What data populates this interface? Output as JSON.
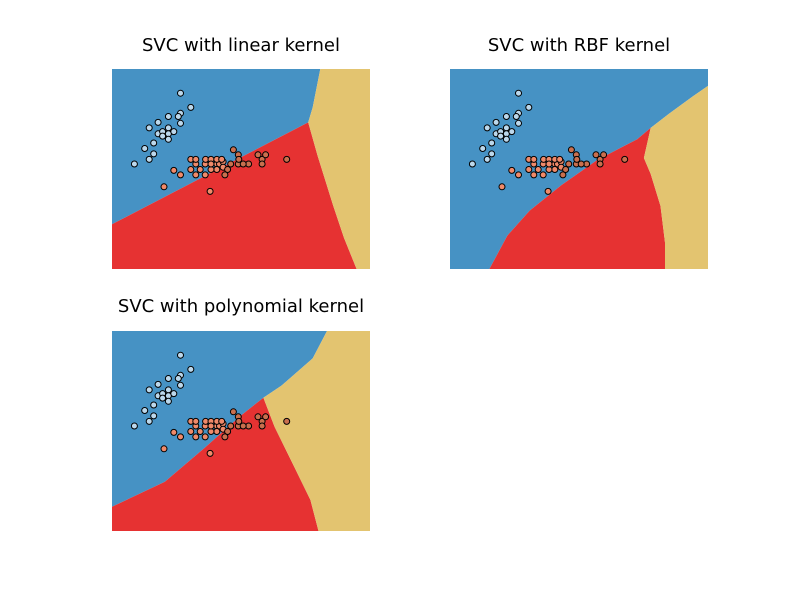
{
  "colors": {
    "class0": "#4692c4",
    "class1": "#e63232",
    "class2": "#e3c470",
    "point_edge": "#000000"
  },
  "chart_data": [
    {
      "type": "scatter",
      "title": "SVC with linear kernel",
      "xlim": [
        -1.98,
        3.78
      ],
      "ylim": [
        -2.68,
        1.7
      ],
      "grid": false,
      "regions": [
        {
          "class": 0,
          "polygon": [
            [
              -1.98,
              1.7
            ],
            [
              2.67,
              1.7
            ],
            [
              2.5,
              0.86
            ],
            [
              2.4,
              0.53
            ],
            [
              -1.98,
              -1.7
            ]
          ]
        },
        {
          "class": 1,
          "polygon": [
            [
              -1.98,
              -1.7
            ],
            [
              2.4,
              0.53
            ],
            [
              2.61,
              -0.2
            ],
            [
              2.96,
              -1.3
            ],
            [
              3.2,
              -2.0
            ],
            [
              3.48,
              -2.68
            ],
            [
              -1.98,
              -2.68
            ]
          ]
        },
        {
          "class": 2,
          "polygon": [
            [
              2.67,
              1.7
            ],
            [
              3.78,
              1.7
            ],
            [
              3.78,
              -2.68
            ],
            [
              3.48,
              -2.68
            ],
            [
              3.2,
              -2.0
            ],
            [
              2.96,
              -1.3
            ],
            [
              2.61,
              -0.2
            ],
            [
              2.4,
              0.53
            ],
            [
              2.5,
              0.86
            ]
          ]
        }
      ]
    },
    {
      "type": "scatter",
      "title": "SVC with RBF kernel",
      "xlim": [
        -1.98,
        3.78
      ],
      "ylim": [
        -2.68,
        1.7
      ],
      "grid": false,
      "regions": [
        {
          "class": 0,
          "polygon": [
            [
              -1.98,
              1.7
            ],
            [
              3.78,
              1.7
            ],
            [
              3.78,
              1.33
            ],
            [
              3.44,
              1.1
            ],
            [
              2.91,
              0.72
            ],
            [
              2.5,
              0.41
            ],
            [
              2.2,
              0.16
            ],
            [
              1.8,
              -0.04
            ],
            [
              1.3,
              -0.3
            ],
            [
              0.5,
              -0.85
            ],
            [
              -0.2,
              -1.4
            ],
            [
              -0.7,
              -1.95
            ],
            [
              -1.1,
              -2.68
            ],
            [
              -1.98,
              -2.68
            ]
          ]
        },
        {
          "class": 1,
          "polygon": [
            [
              2.2,
              0.16
            ],
            [
              1.8,
              -0.04
            ],
            [
              1.3,
              -0.3
            ],
            [
              0.5,
              -0.85
            ],
            [
              -0.2,
              -1.4
            ],
            [
              -0.7,
              -1.95
            ],
            [
              -1.1,
              -2.68
            ],
            [
              2.82,
              -2.68
            ],
            [
              2.82,
              -2.1
            ],
            [
              2.72,
              -1.3
            ],
            [
              2.5,
              -0.6
            ],
            [
              2.35,
              -0.25
            ],
            [
              2.5,
              0.41
            ]
          ]
        },
        {
          "class": 2,
          "polygon": [
            [
              2.5,
              0.41
            ],
            [
              2.91,
              0.72
            ],
            [
              3.44,
              1.1
            ],
            [
              3.78,
              1.33
            ],
            [
              3.78,
              -2.68
            ],
            [
              2.82,
              -2.68
            ],
            [
              2.82,
              -2.1
            ],
            [
              2.72,
              -1.3
            ],
            [
              2.5,
              -0.6
            ],
            [
              2.35,
              -0.25
            ]
          ]
        }
      ]
    },
    {
      "type": "scatter",
      "title": "SVC with polynomial kernel",
      "xlim": [
        -1.98,
        3.78
      ],
      "ylim": [
        -2.68,
        1.7
      ],
      "grid": false,
      "regions": [
        {
          "class": 0,
          "polygon": [
            [
              -1.98,
              1.7
            ],
            [
              2.82,
              1.7
            ],
            [
              2.5,
              1.1
            ],
            [
              1.8,
              0.5
            ],
            [
              1.4,
              0.24
            ],
            [
              0.9,
              -0.15
            ],
            [
              0.1,
              -0.85
            ],
            [
              -0.8,
              -1.6
            ],
            [
              -1.98,
              -2.15
            ],
            [
              -1.98,
              1.7
            ]
          ]
        },
        {
          "class": 1,
          "polygon": [
            [
              -1.98,
              -2.15
            ],
            [
              -0.8,
              -1.6
            ],
            [
              0.1,
              -0.85
            ],
            [
              0.9,
              -0.15
            ],
            [
              1.4,
              0.24
            ],
            [
              1.65,
              -0.4
            ],
            [
              2.1,
              -1.3
            ],
            [
              2.45,
              -2.0
            ],
            [
              2.63,
              -2.68
            ],
            [
              -1.98,
              -2.68
            ]
          ]
        },
        {
          "class": 2,
          "polygon": [
            [
              1.4,
              0.24
            ],
            [
              1.8,
              0.5
            ],
            [
              2.5,
              1.1
            ],
            [
              2.82,
              1.7
            ],
            [
              3.78,
              1.7
            ],
            [
              3.78,
              -2.68
            ],
            [
              2.63,
              -2.68
            ],
            [
              2.45,
              -2.0
            ],
            [
              2.1,
              -1.3
            ],
            [
              1.65,
              -0.4
            ]
          ]
        }
      ]
    }
  ],
  "points": [
    {
      "x": -0.45,
      "y": 1.17,
      "class": 0
    },
    {
      "x": -0.45,
      "y": 0.73,
      "class": 0
    },
    {
      "x": -0.45,
      "y": 0.51,
      "class": 0
    },
    {
      "x": -0.22,
      "y": 0.86,
      "class": 0
    },
    {
      "x": -0.72,
      "y": 0.41,
      "class": 0
    },
    {
      "x": -0.72,
      "y": 0.28,
      "class": 0
    },
    {
      "x": -0.95,
      "y": 0.53,
      "class": 0
    },
    {
      "x": -0.95,
      "y": 0.28,
      "class": 0
    },
    {
      "x": -1.15,
      "y": 0.41,
      "class": 0
    },
    {
      "x": -1.05,
      "y": 0.08,
      "class": 0
    },
    {
      "x": -1.25,
      "y": -0.04,
      "class": 0
    },
    {
      "x": -1.05,
      "y": -0.16,
      "class": 0
    },
    {
      "x": -1.15,
      "y": -0.28,
      "class": 0
    },
    {
      "x": -1.48,
      "y": -0.38,
      "class": 0
    },
    {
      "x": -0.6,
      "y": 0.33,
      "class": 0
    },
    {
      "x": -0.85,
      "y": 0.33,
      "class": 0
    },
    {
      "x": -0.72,
      "y": 0.66,
      "class": 0
    },
    {
      "x": -0.72,
      "y": 0.16,
      "class": 0
    },
    {
      "x": -0.85,
      "y": 0.23,
      "class": 0
    },
    {
      "x": -0.5,
      "y": 0.66,
      "class": 0
    },
    {
      "x": -0.22,
      "y": -0.28,
      "class": 1
    },
    {
      "x": -0.6,
      "y": -0.52,
      "class": 1
    },
    {
      "x": -0.82,
      "y": -0.88,
      "class": 1
    },
    {
      "x": -0.11,
      "y": -0.38,
      "class": 1
    },
    {
      "x": 0.1,
      "y": -0.38,
      "class": 1
    },
    {
      "x": 0.36,
      "y": -0.38,
      "class": 1
    },
    {
      "x": 0.11,
      "y": -0.28,
      "class": 1
    },
    {
      "x": 0.23,
      "y": -0.28,
      "class": 1
    },
    {
      "x": 0.42,
      "y": -0.38,
      "class": 1
    },
    {
      "x": 0.5,
      "y": -0.33,
      "class": 1
    },
    {
      "x": -0.45,
      "y": -0.62,
      "class": 1
    },
    {
      "x": -0.11,
      "y": -0.28,
      "class": 1
    },
    {
      "x": 0.1,
      "y": -0.62,
      "class": 1
    },
    {
      "x": 0.36,
      "y": -0.28,
      "class": 1
    },
    {
      "x": 0.5,
      "y": -0.45,
      "class": 1
    },
    {
      "x": 0.36,
      "y": -0.5,
      "class": 1
    },
    {
      "x": -0.22,
      "y": -0.5,
      "class": 1
    },
    {
      "x": 0.23,
      "y": -0.5,
      "class": 1
    },
    {
      "x": 0.47,
      "y": -0.28,
      "class": 1
    },
    {
      "x": 0.23,
      "y": -0.38,
      "class": 1
    },
    {
      "x": -0.01,
      "y": -0.5,
      "class": 1
    },
    {
      "x": -0.11,
      "y": -0.62,
      "class": 1
    },
    {
      "x": 0.21,
      "y": -0.98,
      "class": 1
    },
    {
      "x": 0.84,
      "y": -0.38,
      "class": 2
    },
    {
      "x": 1.07,
      "y": -0.38,
      "class": 2
    },
    {
      "x": 0.95,
      "y": -0.38,
      "class": 2
    },
    {
      "x": 0.73,
      "y": -0.07,
      "class": 2
    },
    {
      "x": 0.84,
      "y": -0.18,
      "class": 2
    },
    {
      "x": 0.85,
      "y": -0.28,
      "class": 2
    },
    {
      "x": 1.28,
      "y": -0.18,
      "class": 2
    },
    {
      "x": 1.37,
      "y": -0.28,
      "class": 2
    },
    {
      "x": 1.45,
      "y": -0.18,
      "class": 2
    },
    {
      "x": 1.37,
      "y": -0.38,
      "class": 2
    },
    {
      "x": 1.92,
      "y": -0.28,
      "class": 2
    },
    {
      "x": 0.67,
      "y": -0.38,
      "class": 2
    },
    {
      "x": 0.6,
      "y": -0.5,
      "class": 2
    },
    {
      "x": 0.54,
      "y": -0.62,
      "class": 2
    }
  ]
}
